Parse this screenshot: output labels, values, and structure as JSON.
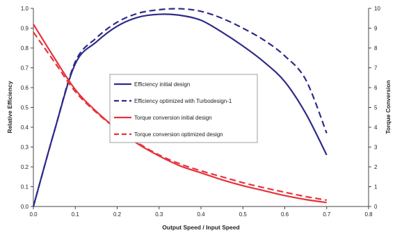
{
  "chart_data": {
    "type": "line",
    "title": "",
    "xlabel": "Output Speed / Input Speed",
    "ylabel_left": "Relative Efficiency",
    "ylabel_right": "Torque Conversion",
    "xlim": [
      0,
      0.8
    ],
    "ylim_left": [
      0,
      1.0
    ],
    "ylim_right": [
      0,
      10
    ],
    "x_ticks": [
      "0.0",
      "0.1",
      "0.2",
      "0.3",
      "0.4",
      "0.5",
      "0.6",
      "0.7",
      "0.8"
    ],
    "y_left_ticks": [
      "0.0",
      "0.1",
      "0.2",
      "0.3",
      "0.4",
      "0.5",
      "0.6",
      "0.7",
      "0.8",
      "0.9",
      "1.0"
    ],
    "y_right_ticks": [
      "0",
      "1",
      "2",
      "3",
      "4",
      "5",
      "6",
      "7",
      "8",
      "9",
      "10"
    ],
    "grid": false,
    "legend_position": "center-left",
    "series": [
      {
        "name": "Efficiency initial design",
        "axis": "left",
        "color": "#2e2a8a",
        "dash": "solid",
        "points": [
          [
            0,
            0
          ],
          [
            0.05,
            0.38
          ],
          [
            0.1,
            0.72
          ],
          [
            0.15,
            0.83
          ],
          [
            0.2,
            0.91
          ],
          [
            0.25,
            0.955
          ],
          [
            0.3,
            0.97
          ],
          [
            0.35,
            0.965
          ],
          [
            0.4,
            0.94
          ],
          [
            0.45,
            0.88
          ],
          [
            0.5,
            0.81
          ],
          [
            0.55,
            0.73
          ],
          [
            0.6,
            0.63
          ],
          [
            0.65,
            0.47
          ],
          [
            0.7,
            0.26
          ]
        ]
      },
      {
        "name": "Efficiency optimized with Turbodesign-1",
        "axis": "left",
        "color": "#2e2a8a",
        "dash": "dashed",
        "points": [
          [
            0,
            0
          ],
          [
            0.05,
            0.38
          ],
          [
            0.1,
            0.73
          ],
          [
            0.15,
            0.85
          ],
          [
            0.2,
            0.93
          ],
          [
            0.25,
            0.975
          ],
          [
            0.3,
            0.993
          ],
          [
            0.35,
            0.998
          ],
          [
            0.4,
            0.985
          ],
          [
            0.45,
            0.95
          ],
          [
            0.5,
            0.9
          ],
          [
            0.55,
            0.84
          ],
          [
            0.6,
            0.76
          ],
          [
            0.65,
            0.64
          ],
          [
            0.7,
            0.37
          ]
        ]
      },
      {
        "name": "Torque conversion initial design",
        "axis": "right",
        "color": "#e8323c",
        "dash": "solid",
        "points": [
          [
            0,
            9.2
          ],
          [
            0.05,
            7.5
          ],
          [
            0.1,
            5.9
          ],
          [
            0.15,
            4.8
          ],
          [
            0.2,
            3.9
          ],
          [
            0.25,
            3.15
          ],
          [
            0.3,
            2.55
          ],
          [
            0.35,
            2.05
          ],
          [
            0.4,
            1.7
          ],
          [
            0.45,
            1.35
          ],
          [
            0.5,
            1.05
          ],
          [
            0.55,
            0.8
          ],
          [
            0.6,
            0.55
          ],
          [
            0.65,
            0.35
          ],
          [
            0.7,
            0.2
          ]
        ]
      },
      {
        "name": "Torque conversion optimized design",
        "axis": "right",
        "color": "#e8323c",
        "dash": "dashed",
        "points": [
          [
            0,
            8.8
          ],
          [
            0.05,
            7.3
          ],
          [
            0.1,
            5.8
          ],
          [
            0.15,
            4.75
          ],
          [
            0.2,
            3.9
          ],
          [
            0.25,
            3.2
          ],
          [
            0.3,
            2.6
          ],
          [
            0.35,
            2.15
          ],
          [
            0.4,
            1.8
          ],
          [
            0.45,
            1.5
          ],
          [
            0.5,
            1.2
          ],
          [
            0.55,
            0.95
          ],
          [
            0.6,
            0.72
          ],
          [
            0.65,
            0.5
          ],
          [
            0.7,
            0.32
          ]
        ]
      }
    ]
  }
}
